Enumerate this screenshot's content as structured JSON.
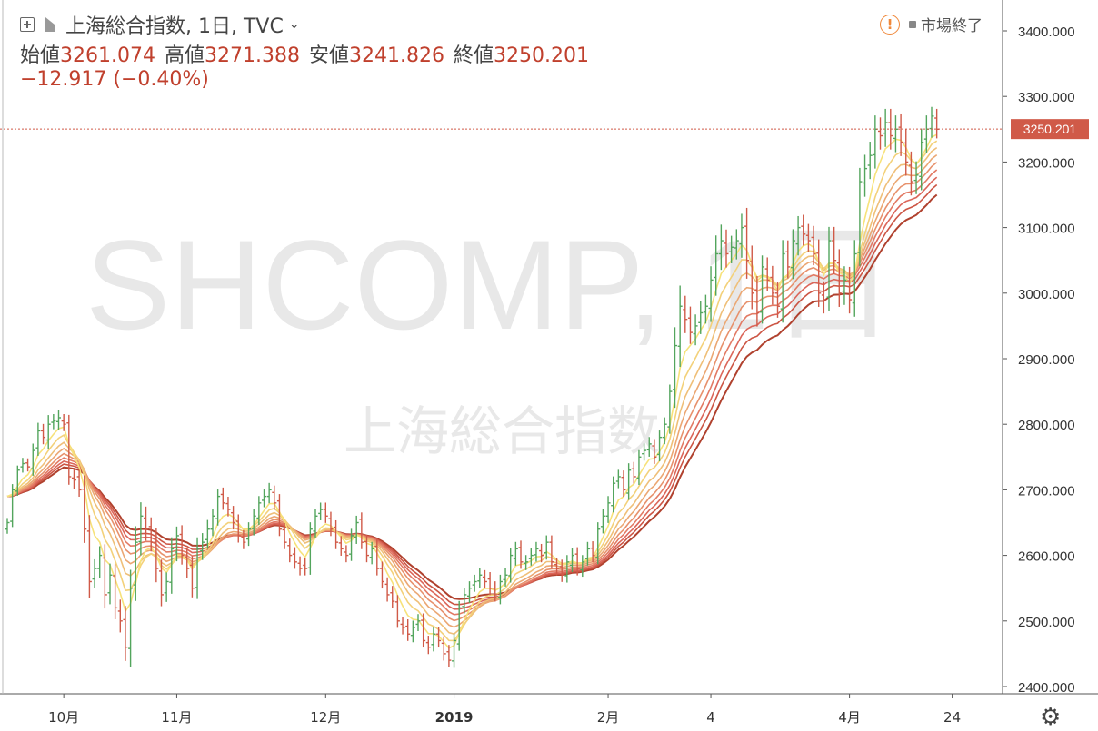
{
  "header": {
    "symbol_title": "上海総合指数, 1日, TVC",
    "ohlc": [
      {
        "label": "始値",
        "value": "3261.074"
      },
      {
        "label": "高値",
        "value": "3271.388"
      },
      {
        "label": "安値",
        "value": "3241.826"
      },
      {
        "label": "終値",
        "value": "3250.201"
      }
    ],
    "change": "−12.917 (−0.40%)",
    "market_status": "市場終了"
  },
  "watermark": {
    "line1": "SHCOMP, 1日",
    "line2": "上海総合指数"
  },
  "colors": {
    "up": "#53a55d",
    "down": "#d05a48",
    "last_price": "#d05a48",
    "ribbon": [
      "#f7e27a",
      "#f3d17a",
      "#efbf78",
      "#eba773",
      "#e7916c",
      "#e27a64",
      "#db665a",
      "#cc5544",
      "#b0412e"
    ]
  },
  "chart_data": {
    "type": "ohlc",
    "y_ticks": [
      "3400.000",
      "3300.000",
      "3200.000",
      "3100.000",
      "3000.000",
      "2900.000",
      "2800.000",
      "2700.000",
      "2600.000",
      "2500.000",
      "2400.000"
    ],
    "ylim": [
      2400,
      3400
    ],
    "x_ticks": [
      {
        "label": "10月",
        "bar": 11
      },
      {
        "label": "11月",
        "bar": 33
      },
      {
        "label": "12月",
        "bar": 62
      },
      {
        "label": "2019",
        "bar": 87
      },
      {
        "label": "2月",
        "bar": 117
      },
      {
        "label": "4",
        "bar": 137
      },
      {
        "label": "4月",
        "bar": 164
      },
      {
        "label": "24",
        "bar": 184
      }
    ],
    "last_price": 3250.201,
    "last_price_label": "3250.201",
    "series_closes": [
      2650,
      2700,
      2730,
      2740,
      2735,
      2760,
      2790,
      2780,
      2800,
      2805,
      2810,
      2800,
      2720,
      2715,
      2700,
      2640,
      2560,
      2580,
      2600,
      2540,
      2570,
      2520,
      2500,
      2460,
      2550,
      2620,
      2660,
      2640,
      2620,
      2580,
      2540,
      2560,
      2610,
      2630,
      2600,
      2580,
      2550,
      2610,
      2620,
      2640,
      2660,
      2690,
      2680,
      2670,
      2650,
      2630,
      2620,
      2640,
      2660,
      2680,
      2690,
      2700,
      2680,
      2640,
      2620,
      2600,
      2590,
      2580,
      2580,
      2640,
      2660,
      2670,
      2660,
      2640,
      2620,
      2610,
      2600,
      2630,
      2650,
      2620,
      2600,
      2610,
      2580,
      2560,
      2540,
      2530,
      2500,
      2490,
      2480,
      2490,
      2500,
      2470,
      2460,
      2480,
      2470,
      2450,
      2440,
      2470,
      2520,
      2540,
      2550,
      2560,
      2570,
      2560,
      2550,
      2540,
      2560,
      2570,
      2600,
      2610,
      2590,
      2590,
      2600,
      2610,
      2600,
      2620,
      2590,
      2580,
      2570,
      2590,
      2600,
      2580,
      2590,
      2610,
      2600,
      2640,
      2660,
      2680,
      2710,
      2720,
      2700,
      2730,
      2720,
      2750,
      2760,
      2770,
      2750,
      2780,
      2800,
      2850,
      2920,
      2980,
      2960,
      2940,
      2950,
      2970,
      2980,
      3020,
      3060,
      3080,
      3060,
      3070,
      3080,
      3100,
      3050,
      3000,
      2970,
      3040,
      3020,
      3000,
      2980,
      3060,
      3040,
      3080,
      3100,
      3090,
      3080,
      3060,
      3000,
      2990,
      3080,
      3050,
      3000,
      3020,
      2990,
      3060,
      3170,
      3190,
      3210,
      3250,
      3240,
      3260,
      3240,
      3250,
      3230,
      3200,
      3170,
      3180,
      3230,
      3250,
      3270,
      3250
    ],
    "series_ranges": [
      20,
      25,
      20,
      25,
      20,
      30,
      35,
      30,
      40,
      30,
      35,
      30,
      35,
      40,
      30,
      60,
      70,
      40,
      40,
      60,
      50,
      50,
      50,
      60,
      80,
      70,
      60,
      50,
      40,
      60,
      50,
      40,
      50,
      40,
      40,
      40,
      40,
      50,
      40,
      40,
      30,
      30,
      30,
      30,
      30,
      30,
      30,
      30,
      30,
      30,
      30,
      30,
      30,
      30,
      30,
      30,
      30,
      30,
      30,
      30,
      30,
      30,
      30,
      30,
      30,
      30,
      30,
      30,
      30,
      30,
      30,
      30,
      30,
      30,
      30,
      30,
      30,
      30,
      30,
      30,
      30,
      30,
      30,
      30,
      30,
      30,
      30,
      30,
      30,
      30,
      30,
      30,
      30,
      30,
      30,
      30,
      30,
      30,
      30,
      30,
      30,
      30,
      30,
      30,
      30,
      30,
      30,
      30,
      30,
      30,
      30,
      30,
      30,
      30,
      30,
      30,
      30,
      30,
      30,
      30,
      30,
      30,
      30,
      30,
      30,
      30,
      30,
      30,
      30,
      30,
      80,
      90,
      60,
      50,
      50,
      50,
      50,
      60,
      80,
      70,
      60,
      50,
      50,
      60,
      80,
      70,
      60,
      50,
      50,
      50,
      50,
      60,
      50,
      50,
      50,
      50,
      50,
      50,
      60,
      60,
      60,
      60,
      60,
      60,
      60,
      60,
      60,
      60,
      60,
      60,
      60,
      60,
      60,
      60,
      60,
      60,
      60,
      60,
      60,
      60,
      40,
      40
    ],
    "ribbon_periods": [
      5,
      8,
      11,
      14,
      17,
      20,
      23,
      26,
      30
    ]
  }
}
